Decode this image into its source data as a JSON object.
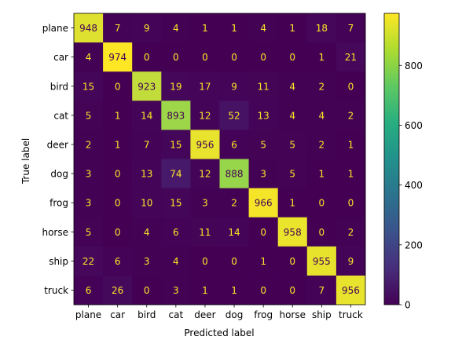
{
  "chart_data": {
    "type": "heatmap",
    "title": "",
    "xlabel": "Predicted label",
    "ylabel": "True label",
    "x_categories": [
      "plane",
      "car",
      "bird",
      "cat",
      "deer",
      "dog",
      "frog",
      "horse",
      "ship",
      "truck"
    ],
    "y_categories": [
      "plane",
      "car",
      "bird",
      "cat",
      "deer",
      "dog",
      "frog",
      "horse",
      "ship",
      "truck"
    ],
    "matrix": [
      [
        948,
        7,
        9,
        4,
        1,
        1,
        4,
        1,
        18,
        7
      ],
      [
        4,
        974,
        0,
        0,
        0,
        0,
        0,
        0,
        1,
        21
      ],
      [
        15,
        0,
        923,
        19,
        17,
        9,
        11,
        4,
        2,
        0
      ],
      [
        5,
        1,
        14,
        893,
        12,
        52,
        13,
        4,
        4,
        2
      ],
      [
        2,
        1,
        7,
        15,
        956,
        6,
        5,
        5,
        2,
        1
      ],
      [
        3,
        0,
        13,
        74,
        12,
        888,
        3,
        5,
        1,
        1
      ],
      [
        3,
        0,
        10,
        15,
        3,
        2,
        966,
        1,
        0,
        0
      ],
      [
        5,
        0,
        4,
        6,
        11,
        14,
        0,
        958,
        0,
        2
      ],
      [
        22,
        6,
        3,
        4,
        0,
        0,
        1,
        0,
        955,
        9
      ],
      [
        6,
        26,
        0,
        3,
        1,
        1,
        0,
        0,
        7,
        956
      ]
    ],
    "colormap": "viridis",
    "color_range": [
      0,
      974
    ],
    "colorbar_ticks": [
      0,
      200,
      400,
      600,
      800
    ],
    "text_color_dark_cells": "#fde725",
    "text_color_light_cells": "#440154"
  }
}
